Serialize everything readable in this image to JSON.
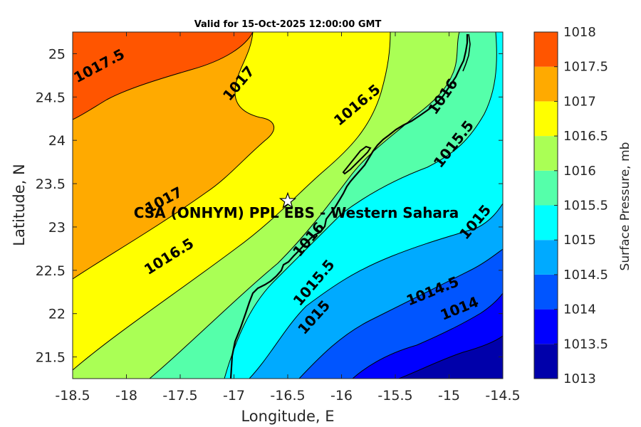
{
  "title": "Valid for 15-Oct-2025 12:00:00 GMT",
  "chart_data": {
    "type": "contour-map",
    "title": "Valid for 15-Oct-2025 12:00:00 GMT",
    "xlabel": "Longitude, E",
    "ylabel": "Latitude, N",
    "xlim": [
      -18.5,
      -14.5
    ],
    "ylim": [
      21.25,
      25.25
    ],
    "xticks": [
      "-18.5",
      "-18",
      "-17.5",
      "-17",
      "-16.5",
      "-16",
      "-15.5",
      "-15",
      "-14.5"
    ],
    "yticks": [
      "21.5",
      "22",
      "22.5",
      "23",
      "23.5",
      "24",
      "24.5",
      "25"
    ],
    "colorbar": {
      "label": "Surface Pressure, mb",
      "levels": [
        1013,
        1013.5,
        1014,
        1014.5,
        1015,
        1015.5,
        1016,
        1016.5,
        1017,
        1017.5,
        1018
      ],
      "tick_labels": [
        "1013",
        "1013.5",
        "1014",
        "1014.5",
        "1015",
        "1015.5",
        "1016",
        "1016.5",
        "1017",
        "1017.5",
        "1018"
      ],
      "colors": [
        "#0000aa",
        "#0000ff",
        "#0055ff",
        "#00aaff",
        "#00ffff",
        "#55ffaa",
        "#aaff55",
        "#ffff00",
        "#ffaa00",
        "#ff5500",
        "#ff0000"
      ]
    },
    "contour_labels": [
      {
        "text": "1017.5",
        "lon": -18.25,
        "lat": 24.85
      },
      {
        "text": "1017",
        "lon": -16.95,
        "lat": 24.65
      },
      {
        "text": "1016.5",
        "lon": -15.85,
        "lat": 24.4
      },
      {
        "text": "1016",
        "lon": -15.05,
        "lat": 24.5
      },
      {
        "text": "1015.5",
        "lon": -14.95,
        "lat": 23.95
      },
      {
        "text": "1017",
        "lon": -17.65,
        "lat": 23.3
      },
      {
        "text": "1016.5",
        "lon": -17.6,
        "lat": 22.65
      },
      {
        "text": "1016",
        "lon": -16.3,
        "lat": 22.85
      },
      {
        "text": "1015.5",
        "lon": -16.25,
        "lat": 22.35
      },
      {
        "text": "1015",
        "lon": -16.25,
        "lat": 21.95
      },
      {
        "text": "1015",
        "lon": -14.75,
        "lat": 23.05
      },
      {
        "text": "1014.5",
        "lon": -15.15,
        "lat": 22.25
      },
      {
        "text": "1014",
        "lon": -14.9,
        "lat": 22.05
      }
    ],
    "station": {
      "label": "CSA (ONHYM) PPL EBS - Western Sahara",
      "lon": -16.5,
      "lat": 23.3
    }
  }
}
